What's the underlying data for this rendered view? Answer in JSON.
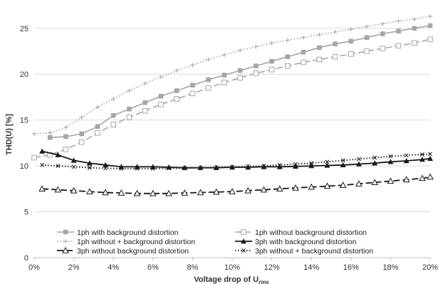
{
  "chart_data": {
    "type": "line",
    "xlabel": "Voltage drop of U",
    "xlabel_sub": "rms",
    "ylabel": "THD(U) [%]",
    "xlim": [
      0,
      20
    ],
    "ylim": [
      0,
      27
    ],
    "x_ticks": [
      0,
      2,
      4,
      6,
      8,
      10,
      12,
      14,
      16,
      18,
      20
    ],
    "x_tick_labels": [
      "0%",
      "2%",
      "4%",
      "6%",
      "8%",
      "10%",
      "12%",
      "14%",
      "16%",
      "18%",
      "20%"
    ],
    "y_ticks": [
      0,
      5,
      10,
      15,
      20,
      25
    ],
    "y_tick_labels": [
      "0",
      "5",
      "10",
      "15",
      "20",
      "25"
    ],
    "grid": "horizontal",
    "legend_position": "bottom",
    "series": [
      {
        "name": "1ph with background distortion",
        "color": "#a6a6a6",
        "dash": "solid",
        "marker": "square-filled",
        "x": [
          0.8,
          1.6,
          2.4,
          3.2,
          4.0,
          4.8,
          5.6,
          6.4,
          7.2,
          8.0,
          8.8,
          9.6,
          10.4,
          11.2,
          12.0,
          12.8,
          13.6,
          14.4,
          15.2,
          16.0,
          16.8,
          17.6,
          18.4,
          19.2,
          20.0
        ],
        "y": [
          13.1,
          13.2,
          13.5,
          14.3,
          15.5,
          16.2,
          16.9,
          17.6,
          18.2,
          18.8,
          19.4,
          19.9,
          20.4,
          20.9,
          21.4,
          21.9,
          22.4,
          22.9,
          23.3,
          23.6,
          24.0,
          24.4,
          24.7,
          25.0,
          25.3
        ]
      },
      {
        "name": "1ph without background distortion",
        "color": "#a6a6a6",
        "dash": "long-dash",
        "marker": "square-open",
        "x": [
          0,
          0.8,
          1.6,
          2.4,
          3.2,
          4.0,
          4.8,
          5.6,
          6.4,
          7.2,
          8.0,
          8.8,
          9.6,
          10.4,
          11.2,
          12.0,
          12.8,
          13.6,
          14.4,
          15.2,
          16.0,
          16.8,
          17.6,
          18.4,
          19.2,
          20.0
        ],
        "y": [
          10.9,
          11.2,
          11.8,
          12.6,
          13.6,
          14.5,
          15.3,
          16.0,
          16.7,
          17.3,
          17.9,
          18.5,
          19.1,
          19.6,
          20.1,
          20.5,
          20.9,
          21.3,
          21.6,
          21.9,
          22.2,
          22.5,
          22.8,
          23.1,
          23.4,
          23.8
        ]
      },
      {
        "name": "1ph without + background distortion",
        "color": "#a6a6a6",
        "dash": "dotted",
        "marker": "plus",
        "x": [
          0,
          0.8,
          1.6,
          2.4,
          3.2,
          4.0,
          4.8,
          5.6,
          6.4,
          7.2,
          8.0,
          8.8,
          9.6,
          10.4,
          11.2,
          12.0,
          12.8,
          13.6,
          14.4,
          15.2,
          16.0,
          16.8,
          17.6,
          18.4,
          19.2,
          20.0
        ],
        "y": [
          13.5,
          13.6,
          14.2,
          15.3,
          16.4,
          17.3,
          18.2,
          19.0,
          19.7,
          20.4,
          21.0,
          21.6,
          22.1,
          22.6,
          23.0,
          23.4,
          23.7,
          24.0,
          24.3,
          24.6,
          24.9,
          25.2,
          25.5,
          25.8,
          26.0,
          26.3
        ]
      },
      {
        "name": "3ph with background distortion",
        "color": "#1a1a1a",
        "dash": "solid",
        "marker": "triangle-filled",
        "x": [
          0.4,
          1.2,
          2.0,
          2.8,
          3.6,
          4.4,
          5.2,
          6.0,
          6.8,
          7.6,
          8.4,
          9.2,
          10.0,
          10.8,
          11.6,
          12.4,
          13.2,
          14.0,
          14.8,
          15.6,
          16.4,
          17.2,
          18.0,
          18.8,
          19.6,
          20.0
        ],
        "y": [
          11.6,
          11.2,
          10.6,
          10.3,
          10.1,
          9.9,
          9.9,
          9.9,
          9.85,
          9.8,
          9.8,
          9.8,
          9.85,
          9.85,
          9.9,
          9.9,
          9.95,
          10.0,
          10.05,
          10.1,
          10.2,
          10.3,
          10.45,
          10.55,
          10.7,
          10.8
        ]
      },
      {
        "name": "3ph without background distortion",
        "color": "#1a1a1a",
        "dash": "long-dash",
        "marker": "triangle-open",
        "x": [
          0.4,
          1.2,
          2.0,
          2.8,
          3.6,
          4.4,
          5.2,
          6.0,
          6.8,
          7.6,
          8.4,
          9.2,
          10.0,
          10.8,
          11.6,
          12.4,
          13.2,
          14.0,
          14.8,
          15.6,
          16.4,
          17.2,
          18.0,
          18.8,
          19.6,
          20.0
        ],
        "y": [
          7.5,
          7.4,
          7.3,
          7.2,
          7.1,
          7.05,
          7.0,
          7.0,
          7.0,
          7.05,
          7.1,
          7.15,
          7.2,
          7.3,
          7.4,
          7.5,
          7.6,
          7.7,
          7.8,
          7.9,
          8.05,
          8.2,
          8.35,
          8.5,
          8.65,
          8.8
        ]
      },
      {
        "name": "3ph without + background distortion",
        "color": "#1a1a1a",
        "dash": "dotted",
        "marker": "x",
        "x": [
          0.4,
          1.2,
          2.0,
          2.8,
          3.6,
          4.4,
          5.2,
          6.0,
          6.8,
          7.6,
          8.4,
          9.2,
          10.0,
          10.8,
          11.6,
          12.4,
          13.2,
          14.0,
          14.8,
          15.6,
          16.4,
          17.2,
          18.0,
          18.8,
          19.6,
          20.0
        ],
        "y": [
          10.1,
          10.0,
          9.9,
          9.8,
          9.75,
          9.7,
          9.7,
          9.7,
          9.75,
          9.75,
          9.8,
          9.85,
          9.9,
          9.95,
          10.0,
          10.1,
          10.2,
          10.3,
          10.45,
          10.6,
          10.75,
          10.9,
          11.05,
          11.15,
          11.25,
          11.3
        ]
      }
    ]
  }
}
